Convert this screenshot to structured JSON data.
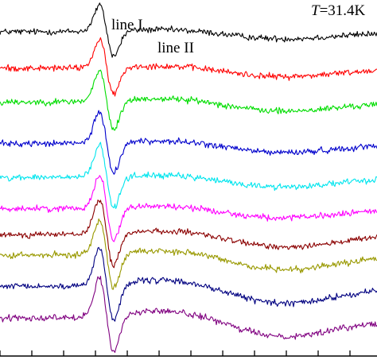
{
  "chart_data": {
    "type": "line",
    "title": "",
    "xlabel": "",
    "ylabel": "",
    "x_range": [
      0,
      1
    ],
    "x_ticks": [
      0,
      0.0844,
      0.1688,
      0.2532,
      0.3376,
      0.422,
      0.5064,
      0.5908,
      0.6751,
      0.7595,
      0.8439,
      0.9283
    ],
    "annotations": {
      "line1": "line I",
      "line2": "line II",
      "temperature_symbol": "T",
      "temperature_value": "=31.4K"
    },
    "curve_shape": {
      "sharp_line_center": 0.283,
      "sharp_line_width": 0.027,
      "broad_line_center": 0.5,
      "broad_line_width": 0.19,
      "tail_minimum_x": 0.72,
      "tail_width": 0.23
    },
    "series": [
      {
        "name": "",
        "color": "#000000",
        "offset": 5.0,
        "sharp_amplitude": 0.52,
        "broad_amplitude": 0.08,
        "tail_amplitude": 0.15
      },
      {
        "name": "",
        "color": "#ff0000",
        "offset": 4.3,
        "sharp_amplitude": 0.55,
        "broad_amplitude": 0.09,
        "tail_amplitude": 0.18
      },
      {
        "name": "",
        "color": "#00dd00",
        "offset": 3.65,
        "sharp_amplitude": 0.6,
        "broad_amplitude": 0.12,
        "tail_amplitude": 0.2
      },
      {
        "name": "",
        "color": "#0000cc",
        "offset": 2.85,
        "sharp_amplitude": 0.62,
        "broad_amplitude": 0.1,
        "tail_amplitude": 0.19
      },
      {
        "name": "",
        "color": "#00e5ee",
        "offset": 2.2,
        "sharp_amplitude": 0.64,
        "broad_amplitude": 0.09,
        "tail_amplitude": 0.2
      },
      {
        "name": "",
        "color": "#ff00ff",
        "offset": 1.6,
        "sharp_amplitude": 0.66,
        "broad_amplitude": 0.1,
        "tail_amplitude": 0.2
      },
      {
        "name": "",
        "color": "#8b0000",
        "offset": 1.1,
        "sharp_amplitude": 0.68,
        "broad_amplitude": 0.14,
        "tail_amplitude": 0.26
      },
      {
        "name": "",
        "color": "#999900",
        "offset": 0.7,
        "sharp_amplitude": 0.7,
        "broad_amplitude": 0.17,
        "tail_amplitude": 0.3
      },
      {
        "name": "",
        "color": "#000080",
        "offset": 0.1,
        "sharp_amplitude": 0.74,
        "broad_amplitude": 0.22,
        "tail_amplitude": 0.36
      },
      {
        "name": "",
        "color": "#800080",
        "offset": -0.5,
        "sharp_amplitude": 0.76,
        "broad_amplitude": 0.24,
        "tail_amplitude": 0.4
      }
    ]
  }
}
